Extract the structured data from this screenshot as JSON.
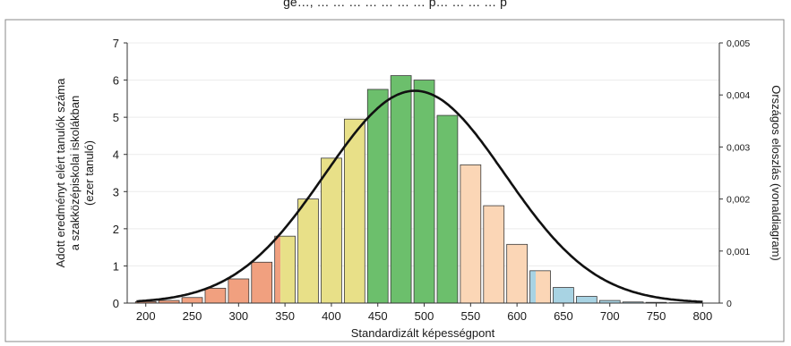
{
  "chart_data": {
    "type": "bar",
    "header_fragment": "ge…, … … … … … … … p… … … … p",
    "xlabel": "Standardizált képességpont",
    "ylabel_left_lines": [
      "Adott eredményt elért tanulók száma",
      "a szakközépiskolai iskolákban",
      "(ezer tanuló)"
    ],
    "ylabel_right": "Országos eloszlás (vonaldiagram)",
    "x_ticks": [
      "200",
      "250",
      "300",
      "350",
      "400",
      "450",
      "500",
      "550",
      "600",
      "650",
      "700",
      "750",
      "800"
    ],
    "xlim": [
      180,
      818
    ],
    "y_left_ticks": [
      "0",
      "1",
      "2",
      "3",
      "4",
      "5",
      "6",
      "7"
    ],
    "ylim_left": [
      0,
      7
    ],
    "y_right_ticks": [
      "0",
      "0,001",
      "0,002",
      "0,003",
      "0,004",
      "0,005"
    ],
    "ylim_right": [
      0,
      0.005
    ],
    "bin_width": 25,
    "bins": [
      {
        "x": 200,
        "value": 0.04,
        "color": "#f1a07f"
      },
      {
        "x": 225,
        "value": 0.07,
        "color": "#f1a07f"
      },
      {
        "x": 250,
        "value": 0.15,
        "color": "#f1a07f"
      },
      {
        "x": 275,
        "value": 0.4,
        "color": "#f1a07f"
      },
      {
        "x": 300,
        "value": 0.65,
        "color": "#f1a07f"
      },
      {
        "x": 325,
        "value": 1.1,
        "color": "#f1a07f"
      },
      {
        "x": 350,
        "value": 1.8,
        "color": "#e8e088",
        "split_color": "#f1a07f"
      },
      {
        "x": 375,
        "value": 2.8,
        "color": "#e8e088"
      },
      {
        "x": 400,
        "value": 3.9,
        "color": "#e8e088"
      },
      {
        "x": 425,
        "value": 4.95,
        "color": "#e8e088"
      },
      {
        "x": 450,
        "value": 5.75,
        "color": "#6cbf6c"
      },
      {
        "x": 475,
        "value": 6.12,
        "color": "#6cbf6c"
      },
      {
        "x": 500,
        "value": 6.0,
        "color": "#6cbf6c"
      },
      {
        "x": 525,
        "value": 5.05,
        "color": "#6cbf6c"
      },
      {
        "x": 550,
        "value": 3.72,
        "color": "#fbd6b6"
      },
      {
        "x": 575,
        "value": 2.62,
        "color": "#fbd6b6"
      },
      {
        "x": 600,
        "value": 1.58,
        "color": "#fbd6b6"
      },
      {
        "x": 625,
        "value": 0.87,
        "color": "#fbd6b6",
        "split_color": "#a8d3e3"
      },
      {
        "x": 650,
        "value": 0.42,
        "color": "#a8d3e3"
      },
      {
        "x": 675,
        "value": 0.18,
        "color": "#a8d3e3"
      },
      {
        "x": 700,
        "value": 0.07,
        "color": "#a8d3e3"
      },
      {
        "x": 725,
        "value": 0.03,
        "color": "#a8d3e3"
      },
      {
        "x": 750,
        "value": 0.02,
        "color": "#a8d3e3"
      },
      {
        "x": 775,
        "value": 0.01,
        "color": "#a8d3e3"
      }
    ],
    "line_series": {
      "mean": 490,
      "sd": 97,
      "peak": 0.00408,
      "x_range": [
        190,
        800
      ],
      "color": "#111111"
    }
  }
}
